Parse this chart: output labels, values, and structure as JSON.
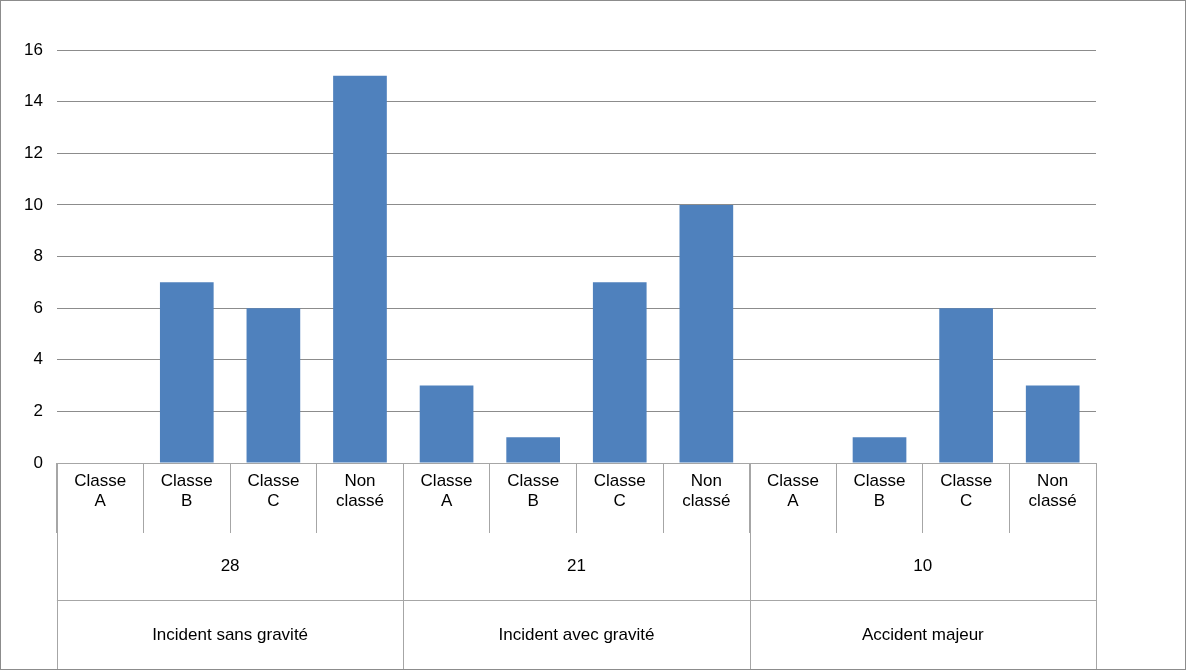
{
  "chart_data": {
    "type": "bar",
    "categories": [
      "Classe A",
      "Classe B",
      "Classe C",
      "Non classé",
      "Classe A",
      "Classe B",
      "Classe C",
      "Non classé",
      "Classe A",
      "Classe B",
      "Classe C",
      "Non classé"
    ],
    "values": [
      0,
      7,
      6,
      15,
      3,
      1,
      7,
      10,
      0,
      1,
      6,
      3
    ],
    "color": "#4f81bd",
    "ylim": [
      0,
      16
    ],
    "yticks": [
      0,
      2,
      4,
      6,
      8,
      10,
      12,
      14,
      16
    ],
    "grid": "y",
    "annotations": [
      "28",
      "21",
      "10",
      "Incident sans gravité",
      "Incident avec gravité",
      "Accident majeur"
    ]
  }
}
